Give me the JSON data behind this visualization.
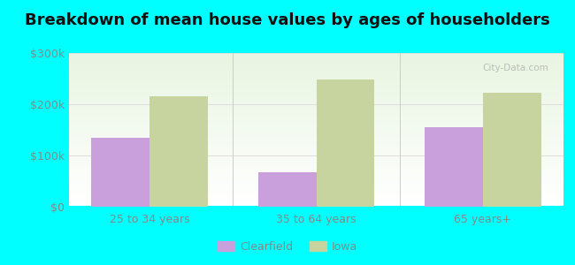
{
  "title": "Breakdown of mean house values by ages of householders",
  "categories": [
    "25 to 34 years",
    "35 to 64 years",
    "65 years+"
  ],
  "clearfield_values": [
    135000,
    67000,
    155000
  ],
  "iowa_values": [
    215000,
    248000,
    222000
  ],
  "ylim": [
    0,
    300000
  ],
  "yticks": [
    0,
    100000,
    200000,
    300000
  ],
  "ytick_labels": [
    "$0",
    "$100k",
    "$200k",
    "$300k"
  ],
  "bar_width": 0.35,
  "clearfield_color": "#c9a0dc",
  "iowa_color": "#c8d4a0",
  "background_outer": "#00ffff",
  "grid_color": "#dddddd",
  "title_fontsize": 13,
  "label_color": "#888888",
  "legend_labels": [
    "Clearfield",
    "Iowa"
  ],
  "watermark_text": "City-Data.com"
}
